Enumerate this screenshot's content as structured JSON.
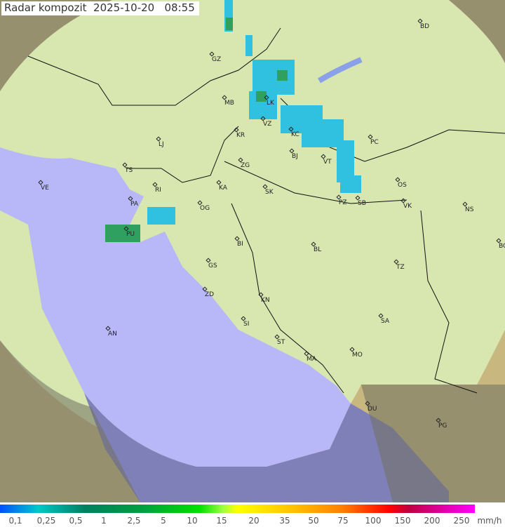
{
  "title": "Radar kompozit  2025-10-20   08:55",
  "legend": {
    "ticks": [
      "0,1",
      "0,25",
      "0,5",
      "1",
      "2,5",
      "5",
      "10",
      "15",
      "20",
      "35",
      "50",
      "75",
      "100",
      "150",
      "200",
      "250"
    ],
    "unit": "mm/h"
  },
  "cities": [
    "BD",
    "GZ",
    "MB",
    "LK",
    "VZ",
    "KR",
    "KC",
    "PC",
    "LJ",
    "TS",
    "BJ",
    "VT",
    "ZG",
    "VE",
    "RI",
    "KA",
    "SK",
    "OS",
    "PA",
    "OG",
    "PZ",
    "SB",
    "VK",
    "NS",
    "PU",
    "BI",
    "BL",
    "BG",
    "GS",
    "TZ",
    "ZD",
    "KN",
    "SA",
    "SI",
    "AN",
    "ST",
    "MO",
    "MA",
    "DU",
    "PG"
  ],
  "colors": {
    "land": "#e8e0a8",
    "coverage": "#d8e8b0",
    "sea": "#b8b8f8",
    "outside": "#808080"
  }
}
